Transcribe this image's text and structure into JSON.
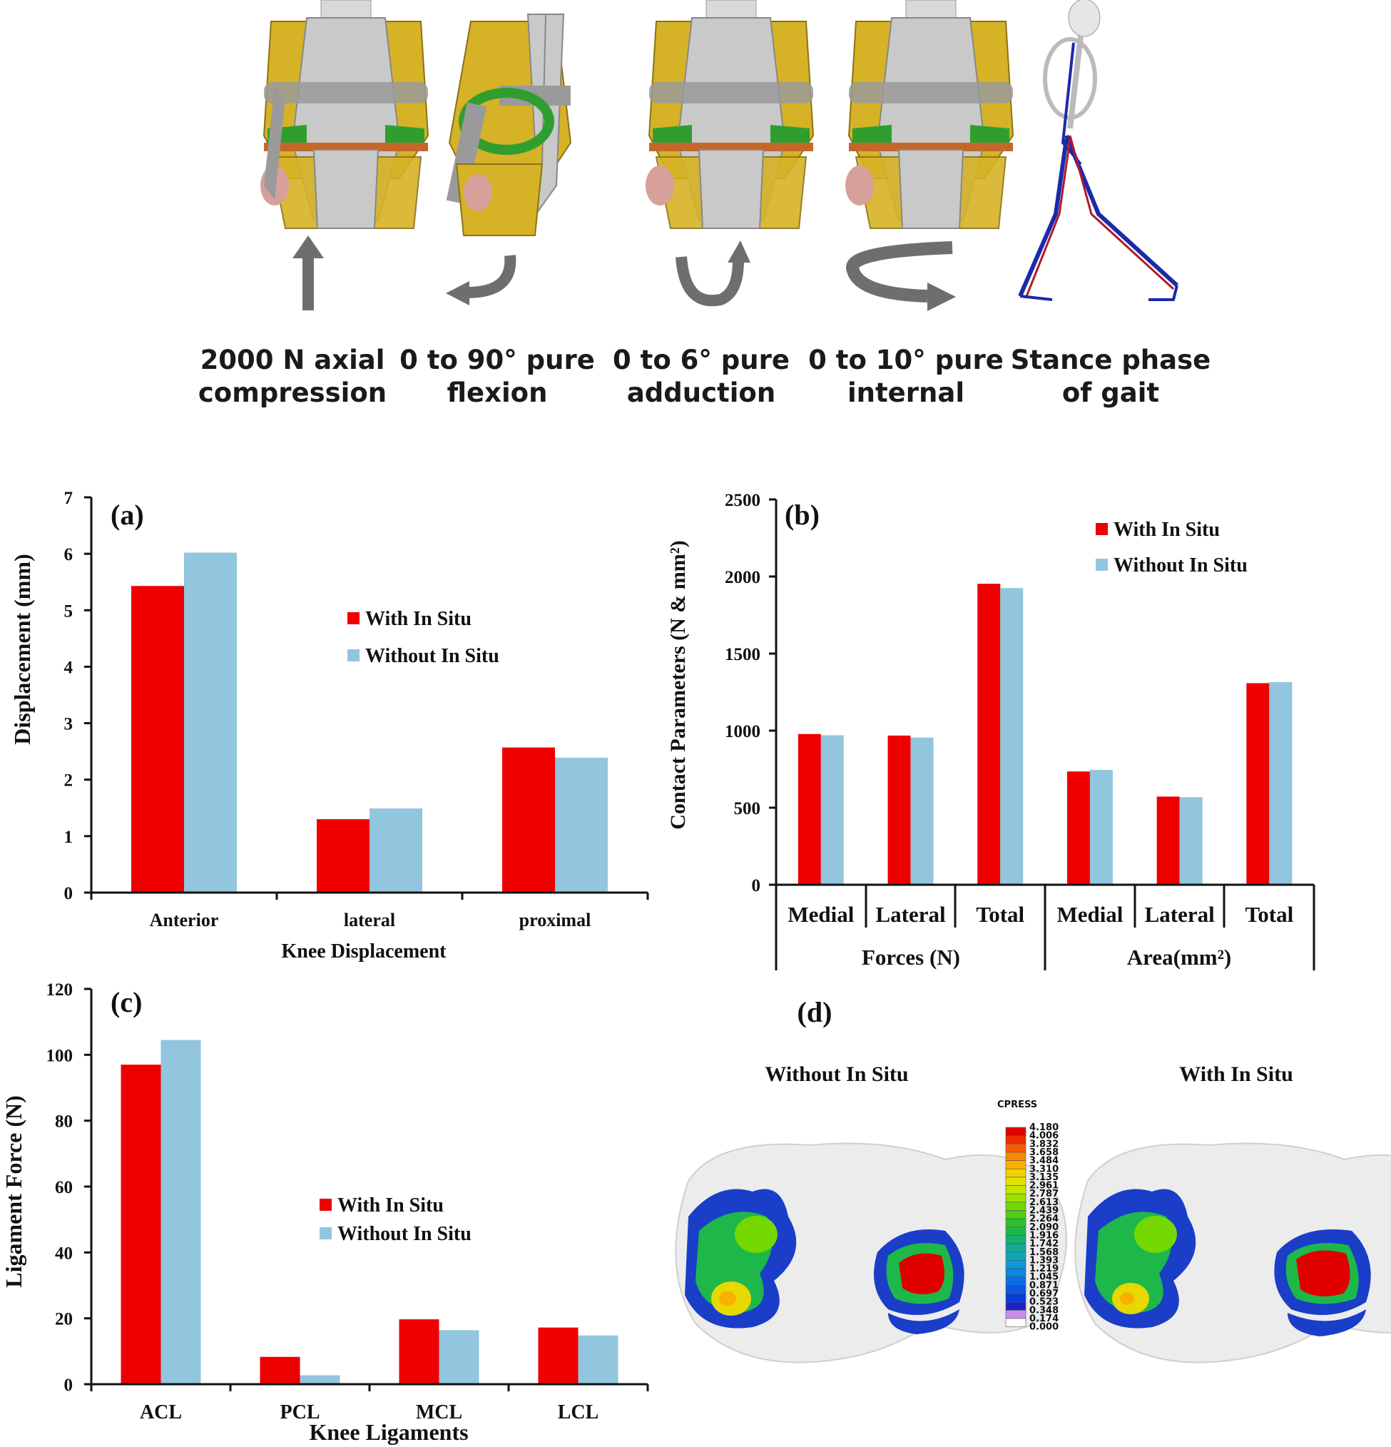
{
  "top_panel": {
    "labels": [
      {
        "line1": "2000 N axial",
        "line2": "compression"
      },
      {
        "line1": "0 to 90° pure",
        "line2": "flexion"
      },
      {
        "line1": "0 to 6° pure",
        "line2": "adduction"
      },
      {
        "line1": "0 to 10° pure",
        "line2": "internal"
      },
      {
        "line1": "Stance phase",
        "line2": "of gait"
      }
    ]
  },
  "colors": {
    "with": "#ee0000",
    "without": "#92c5de",
    "bone": "#d6b226",
    "cartilage": "#c9c9c9",
    "meniscus": "#2f9e2f",
    "arrow": "#6e6e6e"
  },
  "legend": {
    "with": "With In Situ",
    "without": "Without In Situ"
  },
  "chart_data": [
    {
      "id": "a",
      "panel_label": "(a)",
      "type": "bar",
      "categories": [
        "Anterior",
        "lateral",
        "proximal"
      ],
      "series": [
        {
          "name": "With In Situ",
          "values": [
            5.43,
            1.3,
            2.57
          ]
        },
        {
          "name": "Without In Situ",
          "values": [
            6.02,
            1.49,
            2.39
          ]
        }
      ],
      "ylabel": "Displacement (mm)",
      "xlabel": "Knee Displacement",
      "ylim": [
        0,
        7
      ],
      "yticks": [
        0,
        1,
        2,
        3,
        4,
        5,
        6,
        7
      ]
    },
    {
      "id": "b",
      "panel_label": "(b)",
      "type": "bar",
      "categories": [
        "Medial",
        "Lateral",
        "Total",
        "Medial",
        "Lateral",
        "Total"
      ],
      "groups": [
        "Forces (N)",
        "Area(mm²)"
      ],
      "series": [
        {
          "name": "With In Situ",
          "values": [
            978,
            968,
            1953,
            735,
            572,
            1308
          ]
        },
        {
          "name": "Without In Situ",
          "values": [
            970,
            955,
            1925,
            745,
            568,
            1315
          ]
        }
      ],
      "ylabel": "Contact Parameters (N & mm²)",
      "ylim": [
        0,
        2500
      ],
      "yticks": [
        0,
        500,
        1000,
        1500,
        2000,
        2500
      ]
    },
    {
      "id": "c",
      "panel_label": "(c)",
      "type": "bar",
      "categories": [
        "ACL",
        "PCL",
        "MCL",
        "LCL"
      ],
      "series": [
        {
          "name": "With In Situ",
          "values": [
            97,
            8.3,
            19.7,
            17.2
          ]
        },
        {
          "name": "Without In Situ",
          "values": [
            104.5,
            2.7,
            16.4,
            14.8
          ]
        }
      ],
      "ylabel": "Ligament Force (N)",
      "xlabel": "Knee Ligaments",
      "ylim": [
        0,
        120
      ],
      "yticks": [
        0,
        20,
        40,
        60,
        80,
        100,
        120
      ]
    }
  ],
  "panel_d": {
    "panel_label": "(d)",
    "left_title": "Without In Situ",
    "right_title": "With In Situ",
    "colorbar_title": "CPRESS",
    "colorbar_values": [
      "4.180",
      "4.006",
      "3.832",
      "3.658",
      "3.484",
      "3.310",
      "3.135",
      "2.961",
      "2.787",
      "2.613",
      "2.439",
      "2.264",
      "2.090",
      "1.916",
      "1.742",
      "1.568",
      "1.393",
      "1.219",
      "1.045",
      "0.871",
      "0.697",
      "0.523",
      "0.348",
      "0.174",
      "0.000"
    ],
    "colorbar_colors": [
      "#e00000",
      "#ef2a00",
      "#f55c00",
      "#f98a00",
      "#fbb000",
      "#f3cf00",
      "#e2e200",
      "#c4e600",
      "#9fe000",
      "#73d800",
      "#4ccf10",
      "#2fc22a",
      "#1eb84a",
      "#18b070",
      "#14aa94",
      "#10a4b8",
      "#0e9ad6",
      "#0a86e6",
      "#0a6ee6",
      "#0a56e0",
      "#0a3ed4",
      "#1a26c4",
      "#c98ee8",
      "#ffffff"
    ]
  }
}
